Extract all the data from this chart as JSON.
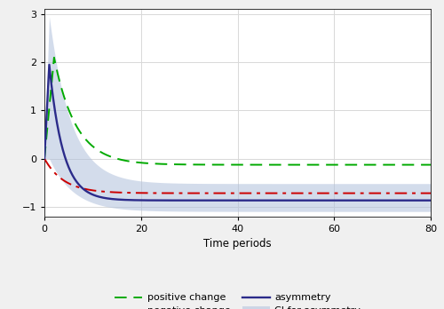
{
  "t_max": 80,
  "n_points": 400,
  "ylim": [
    -1.2,
    3.1
  ],
  "yticks": [
    -1,
    0,
    1,
    2,
    3
  ],
  "xticks": [
    0,
    20,
    40,
    60,
    80
  ],
  "xlabel": "Time periods",
  "bg_color": "#f0f0f0",
  "plot_bg_color": "#ffffff",
  "grid_color": "#d8d8d8",
  "positive_color": "#00aa00",
  "negative_color": "#cc0000",
  "asymmetry_color": "#2b2b8a",
  "ci_color": "#b0c0dc",
  "ci_alpha": 0.55,
  "positive_peak_t": 2.0,
  "positive_peak_val": 2.1,
  "positive_asymptote": -0.13,
  "positive_decay": 0.22,
  "negative_start": 0.0,
  "negative_dip": -0.45,
  "negative_dip_t": 1.0,
  "negative_asymptote": -0.72,
  "negative_decay": 0.25,
  "asymmetry_peak_t": 1.0,
  "asymmetry_peak_val": 1.95,
  "asymmetry_asymptote": -0.87,
  "asymmetry_decay": 0.35,
  "ci_upper_peak_t": 1.0,
  "ci_upper_peak_val": 2.95,
  "ci_upper_asymptote": -0.52,
  "ci_upper_decay": 0.22,
  "ci_lower_peak_t": 1.0,
  "ci_lower_peak_val": 0.0,
  "ci_lower_asymptote": -1.1,
  "ci_lower_decay": 0.2,
  "linewidth_main": 1.4,
  "linewidth_ci_edge": 0.0
}
